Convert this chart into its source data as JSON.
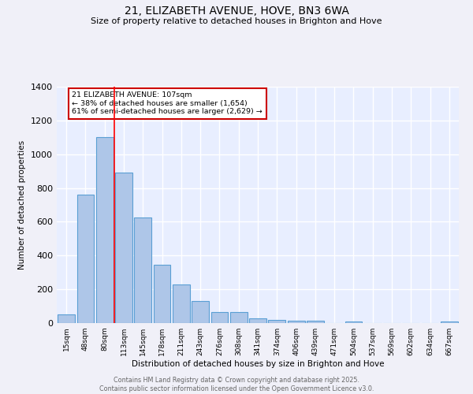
{
  "title1": "21, ELIZABETH AVENUE, HOVE, BN3 6WA",
  "title2": "Size of property relative to detached houses in Brighton and Hove",
  "xlabel": "Distribution of detached houses by size in Brighton and Hove",
  "ylabel": "Number of detached properties",
  "bar_labels": [
    "15sqm",
    "48sqm",
    "80sqm",
    "113sqm",
    "145sqm",
    "178sqm",
    "211sqm",
    "243sqm",
    "276sqm",
    "308sqm",
    "341sqm",
    "374sqm",
    "406sqm",
    "439sqm",
    "471sqm",
    "504sqm",
    "537sqm",
    "569sqm",
    "602sqm",
    "634sqm",
    "667sqm"
  ],
  "bar_values": [
    50,
    760,
    1100,
    890,
    625,
    345,
    228,
    133,
    65,
    65,
    28,
    18,
    16,
    14,
    0,
    10,
    0,
    0,
    0,
    0,
    10
  ],
  "bar_color": "#aec6e8",
  "bar_edge_color": "#5a9fd4",
  "background_color": "#e8eeff",
  "fig_background_color": "#f0f0f8",
  "grid_color": "#ffffff",
  "annotation_title": "21 ELIZABETH AVENUE: 107sqm",
  "annotation_line1": "← 38% of detached houses are smaller (1,654)",
  "annotation_line2": "61% of semi-detached houses are larger (2,629) →",
  "annotation_box_color": "#ffffff",
  "annotation_box_edge": "#cc0000",
  "footer": "Contains HM Land Registry data © Crown copyright and database right 2025.\nContains public sector information licensed under the Open Government Licence v3.0.",
  "ylim": [
    0,
    1400
  ],
  "yticks": [
    0,
    200,
    400,
    600,
    800,
    1000,
    1200,
    1400
  ]
}
